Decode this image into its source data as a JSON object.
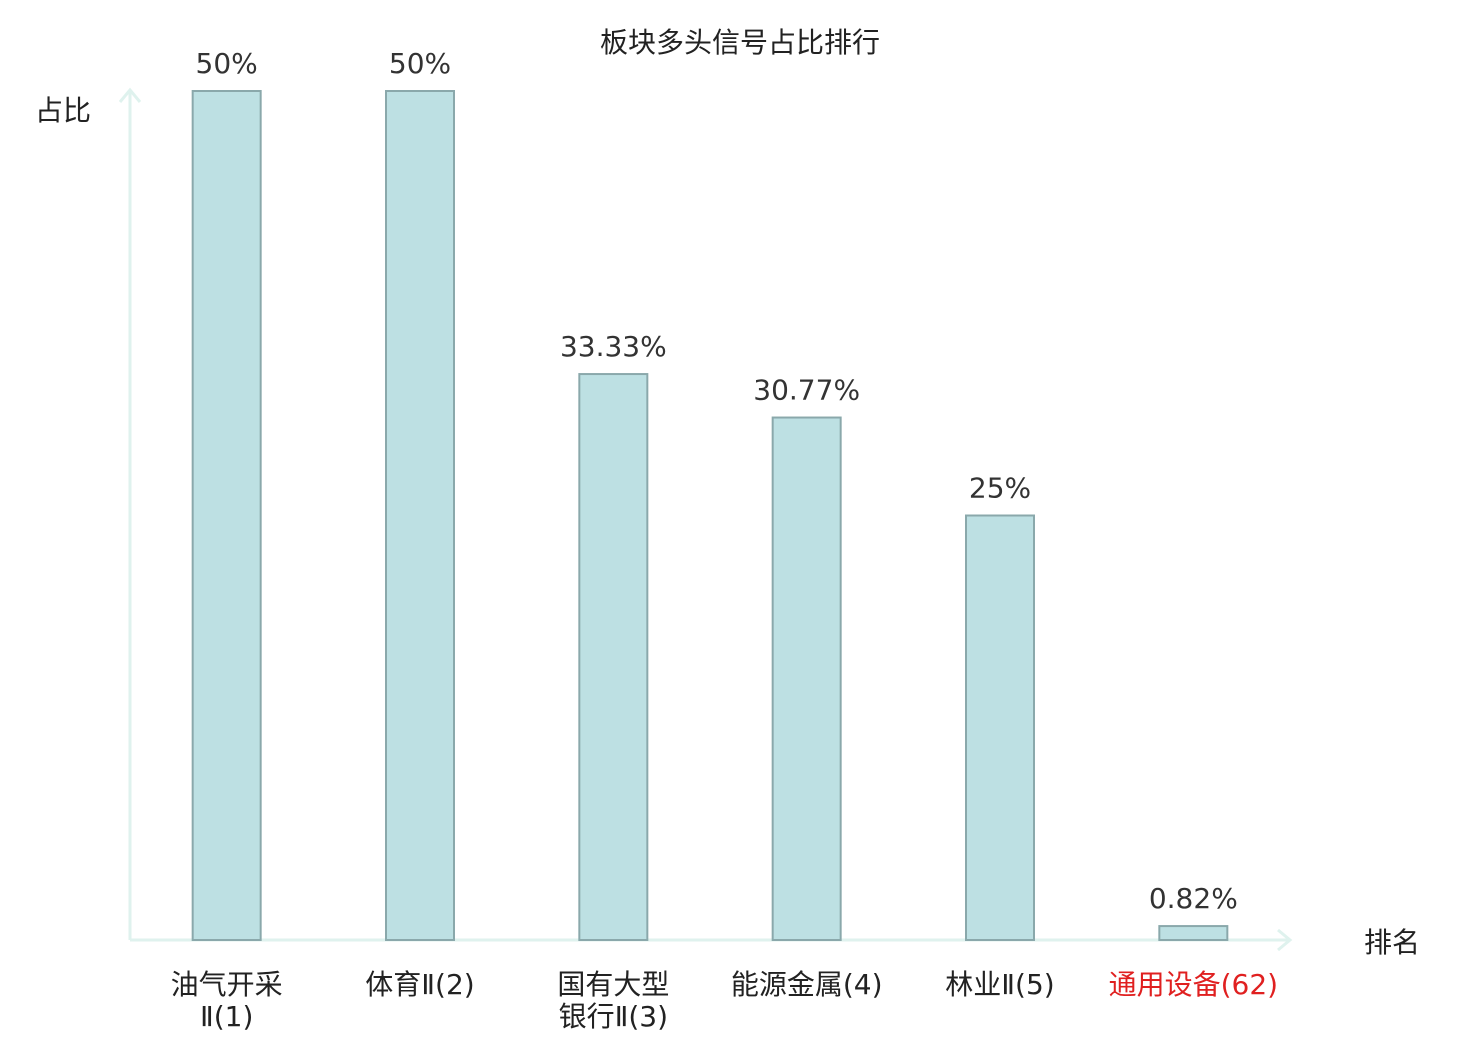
{
  "chart_data": {
    "type": "bar",
    "title": "板块多头信号占比排行",
    "y_label": "占比",
    "x_label": "排名",
    "categories": [
      [
        "油气开采",
        "Ⅱ(1)"
      ],
      [
        "体育Ⅱ(2)"
      ],
      [
        "国有大型",
        "银行Ⅱ(3)"
      ],
      [
        "能源金属(4)"
      ],
      [
        "林业Ⅱ(5)"
      ],
      [
        "通用设备(62)"
      ]
    ],
    "category_colors": [
      "#222222",
      "#222222",
      "#222222",
      "#222222",
      "#222222",
      "#e02020"
    ],
    "values": [
      50,
      50,
      33.33,
      30.77,
      25,
      0.82
    ],
    "value_labels": [
      "50%",
      "50%",
      "33.33%",
      "30.77%",
      "25%",
      "0.82%"
    ],
    "color": "#bde0e3",
    "edge_color": "#8aa8ab",
    "axis_color": "#dff2ee",
    "ylim": [
      0,
      50
    ]
  }
}
